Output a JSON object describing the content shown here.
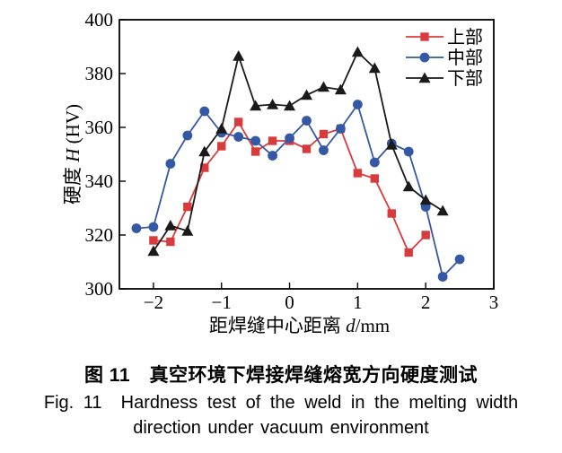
{
  "figure": {
    "caption_cn": "图 11　真空环境下焊接焊缝熔宽方向硬度测试",
    "caption_en_line1": "Fig. 11  Hardness test of the weld in the melting width",
    "caption_en_line2": "direction under vacuum environment"
  },
  "chart_data": {
    "type": "line",
    "title": "",
    "xlabel": {
      "cn": "距焊缝中心距离 ",
      "var": "d",
      "unit": "/mm"
    },
    "ylabel": {
      "cn": "硬度 ",
      "var": "H",
      "unit": " (HV)"
    },
    "xlim": [
      -2.5,
      3
    ],
    "ylim": [
      300,
      400
    ],
    "x_ticks": [
      -2,
      -1,
      0,
      1,
      2,
      3
    ],
    "x_tick_labels": [
      "−2",
      "−1",
      "0",
      "1",
      "2",
      "3"
    ],
    "y_ticks": [
      300,
      320,
      340,
      360,
      380,
      400
    ],
    "grid": false,
    "legend_position": "top-right-inside",
    "frame_color": "#000000",
    "series": [
      {
        "key": "upper",
        "name": "上部",
        "color": "#d83b3d",
        "marker": "square",
        "points": [
          [
            -2,
            318
          ],
          [
            -1.75,
            317.5
          ],
          [
            -1.5,
            330.5
          ],
          [
            -1.25,
            345
          ],
          [
            -1,
            353
          ],
          [
            -0.75,
            362
          ],
          [
            -0.5,
            351
          ],
          [
            -0.25,
            355
          ],
          [
            0,
            355
          ],
          [
            0.25,
            352
          ],
          [
            0.5,
            357.5
          ],
          [
            0.75,
            359.5
          ],
          [
            1,
            343
          ],
          [
            1.25,
            341
          ],
          [
            1.5,
            328
          ],
          [
            1.75,
            313.5
          ],
          [
            2,
            320
          ]
        ]
      },
      {
        "key": "middle",
        "name": "中部",
        "color": "#3558a5",
        "marker": "circle",
        "points": [
          [
            -2.25,
            322.5
          ],
          [
            -2,
            323
          ],
          [
            -1.75,
            346.5
          ],
          [
            -1.5,
            357
          ],
          [
            -1.25,
            366
          ],
          [
            -1,
            358
          ],
          [
            -0.75,
            356.5
          ],
          [
            -0.5,
            355
          ],
          [
            -0.25,
            349.5
          ],
          [
            0,
            356
          ],
          [
            0.25,
            362.5
          ],
          [
            0.5,
            351.5
          ],
          [
            0.75,
            359.5
          ],
          [
            1,
            368.5
          ],
          [
            1.25,
            347
          ],
          [
            1.5,
            354
          ],
          [
            1.75,
            351
          ],
          [
            2,
            330.5
          ],
          [
            2.25,
            304.5
          ],
          [
            2.5,
            311
          ]
        ]
      },
      {
        "key": "lower",
        "name": "下部",
        "color": "#1a1a1a",
        "marker": "triangle",
        "points": [
          [
            -2,
            314
          ],
          [
            -1.75,
            323.5
          ],
          [
            -1.5,
            321.5
          ],
          [
            -1.25,
            351
          ],
          [
            -1,
            359.5
          ],
          [
            -0.75,
            386.5
          ],
          [
            -0.5,
            368
          ],
          [
            -0.25,
            368.5
          ],
          [
            0,
            368
          ],
          [
            0.25,
            372
          ],
          [
            0.5,
            375
          ],
          [
            0.75,
            374
          ],
          [
            1,
            388
          ],
          [
            1.25,
            382
          ],
          [
            1.5,
            353.5
          ],
          [
            1.75,
            338
          ],
          [
            2,
            333
          ],
          [
            2.25,
            329
          ]
        ]
      }
    ]
  }
}
